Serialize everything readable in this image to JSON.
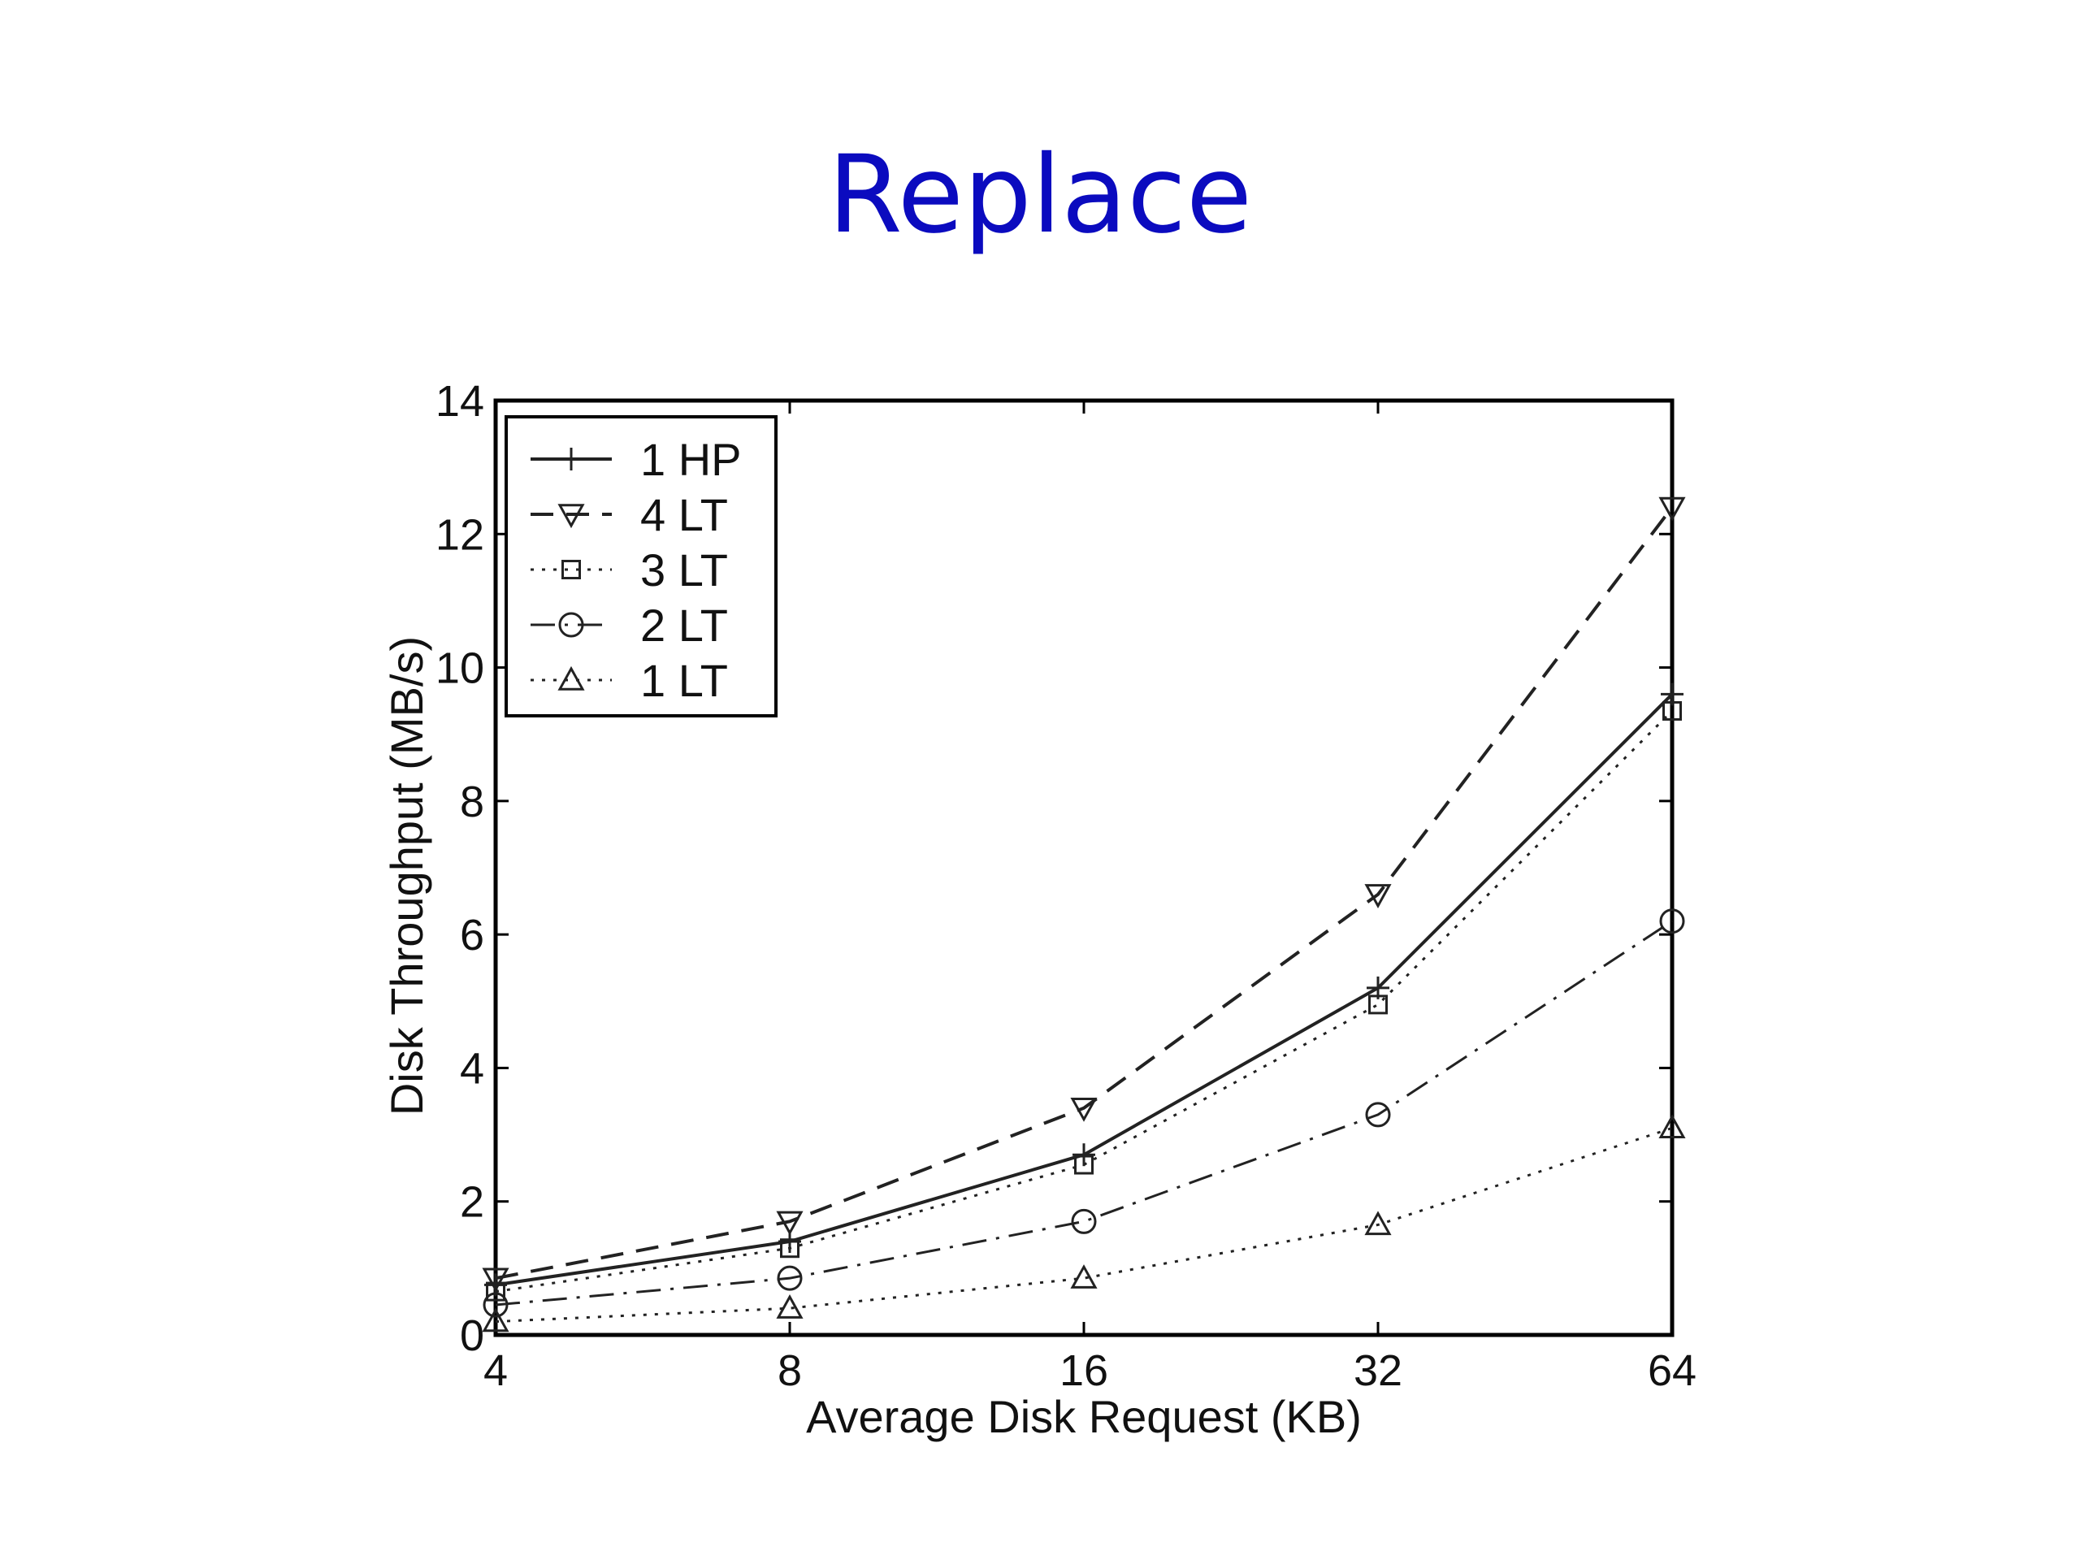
{
  "slide": {
    "title": "Replace"
  },
  "colors": {
    "title": "#0b0bbf",
    "axes": "#000000",
    "series": "#222222"
  },
  "chart_data": {
    "type": "line",
    "xlabel": "Average Disk Request (KB)",
    "ylabel": "Disk Throughput (MB/s)",
    "x_scale": "log2",
    "x": [
      4,
      8,
      16,
      32,
      64
    ],
    "x_tick_labels": [
      "4",
      "8",
      "16",
      "32",
      "64"
    ],
    "ylim": [
      0,
      14
    ],
    "y_ticks": [
      0,
      2,
      4,
      6,
      8,
      10,
      12,
      14
    ],
    "grid": false,
    "legend_position": "top-left",
    "series": [
      {
        "name": "1 HP",
        "values": [
          0.75,
          1.4,
          2.7,
          5.2,
          9.6
        ],
        "marker": "plus",
        "line": "solid"
      },
      {
        "name": "4 LT",
        "values": [
          0.85,
          1.7,
          3.4,
          6.6,
          12.4
        ],
        "marker": "triangle-down",
        "line": "dashed"
      },
      {
        "name": "3 LT",
        "values": [
          0.65,
          1.3,
          2.55,
          4.95,
          9.35
        ],
        "marker": "square",
        "line": "dotted"
      },
      {
        "name": "2 LT",
        "values": [
          0.45,
          0.85,
          1.7,
          3.3,
          6.2
        ],
        "marker": "circle",
        "line": "dashdot"
      },
      {
        "name": "1 LT",
        "values": [
          0.2,
          0.4,
          0.85,
          1.65,
          3.1
        ],
        "marker": "triangle-up",
        "line": "dotted"
      }
    ]
  }
}
